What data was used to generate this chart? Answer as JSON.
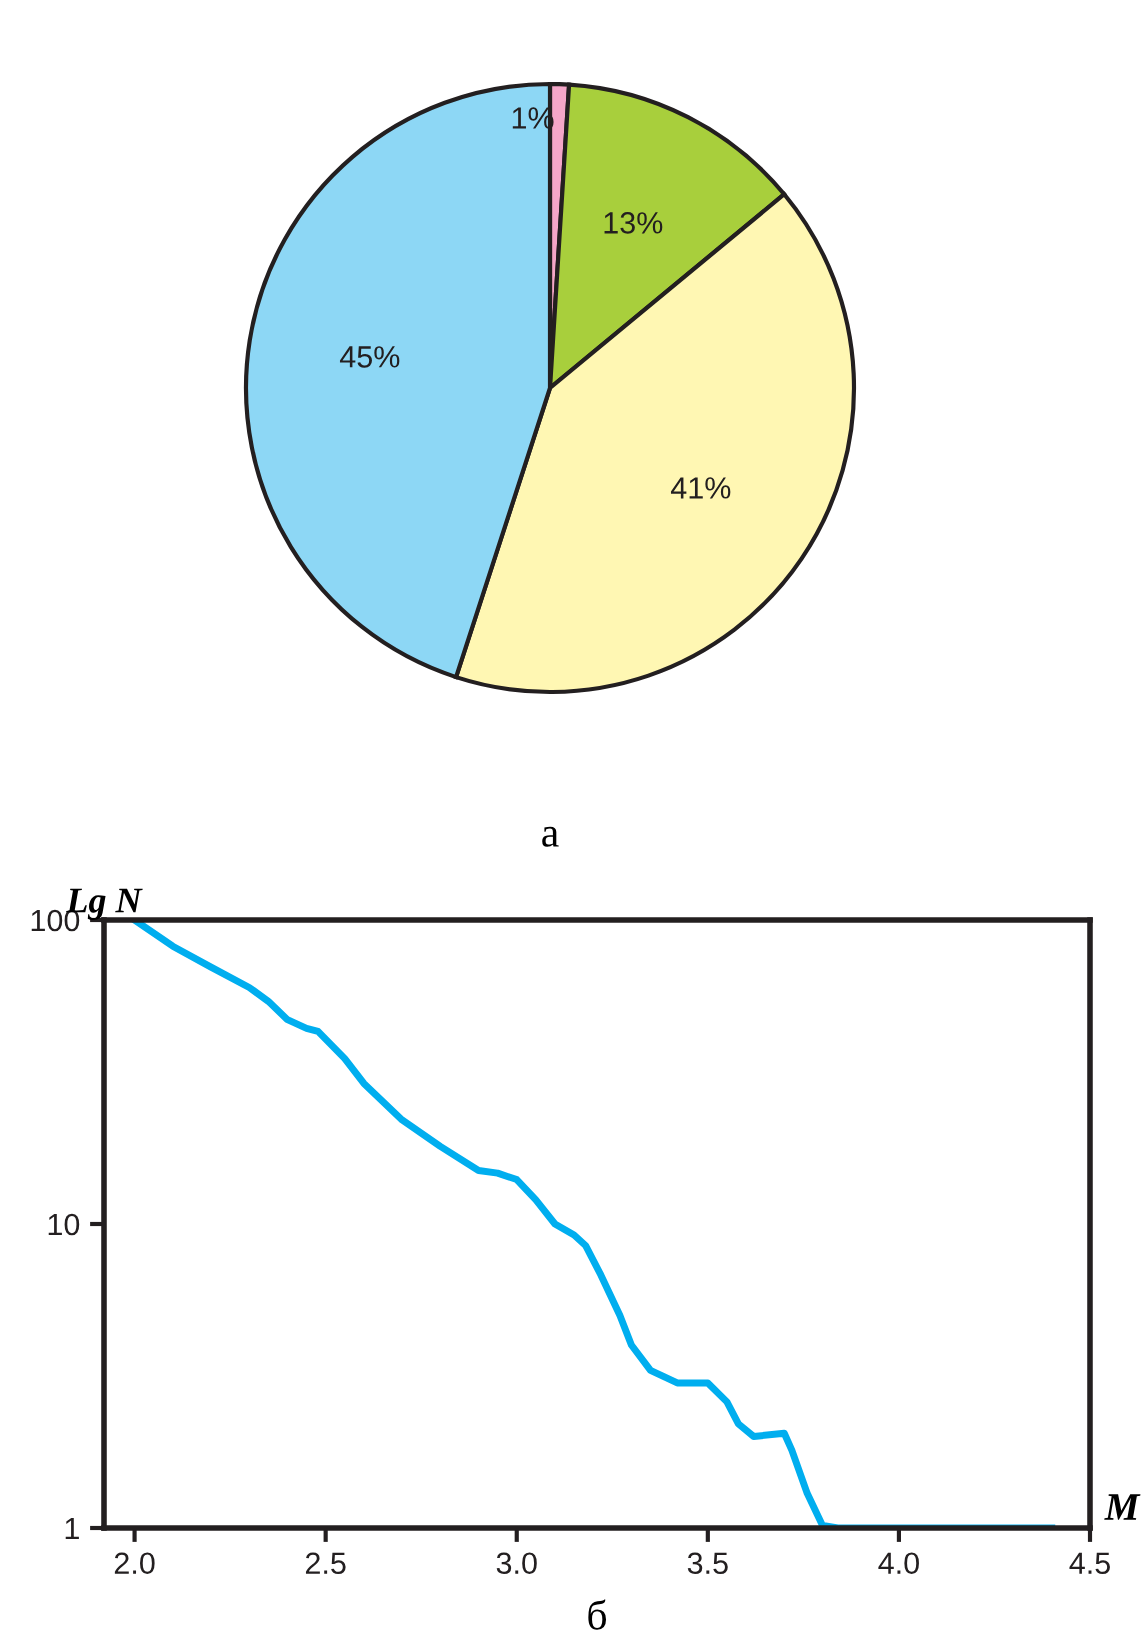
{
  "chart_data": [
    {
      "type": "pie",
      "title": "а",
      "categories": [
        null,
        null,
        null,
        null
      ],
      "values": [
        1,
        13,
        41,
        45
      ],
      "colors": [
        "#f4a6c8",
        "#a8cf3c",
        "#fff7b3",
        "#8dd7f5"
      ],
      "value_labels": [
        "1%",
        "13%",
        "41%",
        "45%"
      ]
    },
    {
      "type": "line",
      "title": "б",
      "ylabel": "Lg N",
      "xlabel": "M",
      "log": "y",
      "grid": false,
      "legend": false,
      "x": [
        2.0,
        2.1,
        2.2,
        2.3,
        2.35,
        2.4,
        2.45,
        2.48,
        2.55,
        2.6,
        2.7,
        2.8,
        2.9,
        2.95,
        3.0,
        3.05,
        3.1,
        3.15,
        3.18,
        3.22,
        3.27,
        3.3,
        3.35,
        3.42,
        3.45,
        3.5,
        3.55,
        3.58,
        3.62,
        3.7,
        3.72,
        3.76,
        3.8,
        3.84,
        3.9,
        4.4
      ],
      "series": [
        {
          "color": "#00aeef",
          "values": [
            100,
            82,
            70,
            60,
            54,
            47,
            44,
            43,
            35,
            29,
            22,
            18,
            15,
            14.7,
            14,
            12,
            10,
            9.2,
            8.5,
            6.8,
            5,
            4,
            3.3,
            3.0,
            3.0,
            3.0,
            2.6,
            2.2,
            2.0,
            2.05,
            1.8,
            1.3,
            1.02,
            1.0,
            1.0,
            1.0
          ]
        }
      ],
      "xlim": [
        1.92,
        4.5
      ],
      "ylim": [
        1,
        100
      ],
      "xticks": [
        {
          "value": 2,
          "label": "2.0"
        },
        {
          "value": 2.5,
          "label": "2.5"
        },
        {
          "value": 3,
          "label": "3.0"
        },
        {
          "value": 3.5,
          "label": "3.5"
        },
        {
          "value": 4,
          "label": "4.0"
        },
        {
          "value": 4.5,
          "label": "4.5"
        }
      ],
      "yticks": [
        1,
        10,
        100
      ]
    }
  ]
}
